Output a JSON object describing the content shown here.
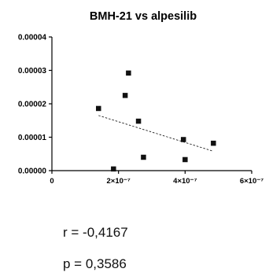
{
  "chart_data": {
    "type": "scatter",
    "title": "BMH-21 vs alpesilib",
    "xlabel": "",
    "ylabel": "",
    "xlim": [
      0,
      6e-07
    ],
    "ylim": [
      0,
      4e-05
    ],
    "x_ticks": [
      {
        "value": 0,
        "label": "0"
      },
      {
        "value": 2e-07,
        "label": "2×10⁻⁷"
      },
      {
        "value": 4e-07,
        "label": "4×10⁻⁷"
      },
      {
        "value": 6e-07,
        "label": "6×10⁻⁷"
      }
    ],
    "y_ticks": [
      {
        "value": 0,
        "label": "0.00000"
      },
      {
        "value": 1e-05,
        "label": "0.00001"
      },
      {
        "value": 2e-05,
        "label": "0.00002"
      },
      {
        "value": 3e-05,
        "label": "0.00003"
      },
      {
        "value": 4e-05,
        "label": "0.00004"
      }
    ],
    "points": [
      {
        "x": 1.85e-07,
        "y": 5e-07
      },
      {
        "x": 1.4e-07,
        "y": 1.86e-05
      },
      {
        "x": 2.2e-07,
        "y": 2.25e-05
      },
      {
        "x": 2.3e-07,
        "y": 2.92e-05
      },
      {
        "x": 2.6e-07,
        "y": 1.48e-05
      },
      {
        "x": 2.75e-07,
        "y": 4e-06
      },
      {
        "x": 3.95e-07,
        "y": 9.3e-06
      },
      {
        "x": 4e-07,
        "y": 3.3e-06
      },
      {
        "x": 4.85e-07,
        "y": 8.2e-06
      }
    ],
    "trendline": {
      "x": [
        1.4e-07,
        4.85e-07
      ],
      "y": [
        1.65e-05,
        5.8e-06
      ],
      "style": "dashed"
    },
    "grid": false,
    "marker": "square",
    "marker_color": "#111111"
  },
  "stats": {
    "r_text": "r = -0,4167",
    "p_text": "p = 0,3586"
  }
}
